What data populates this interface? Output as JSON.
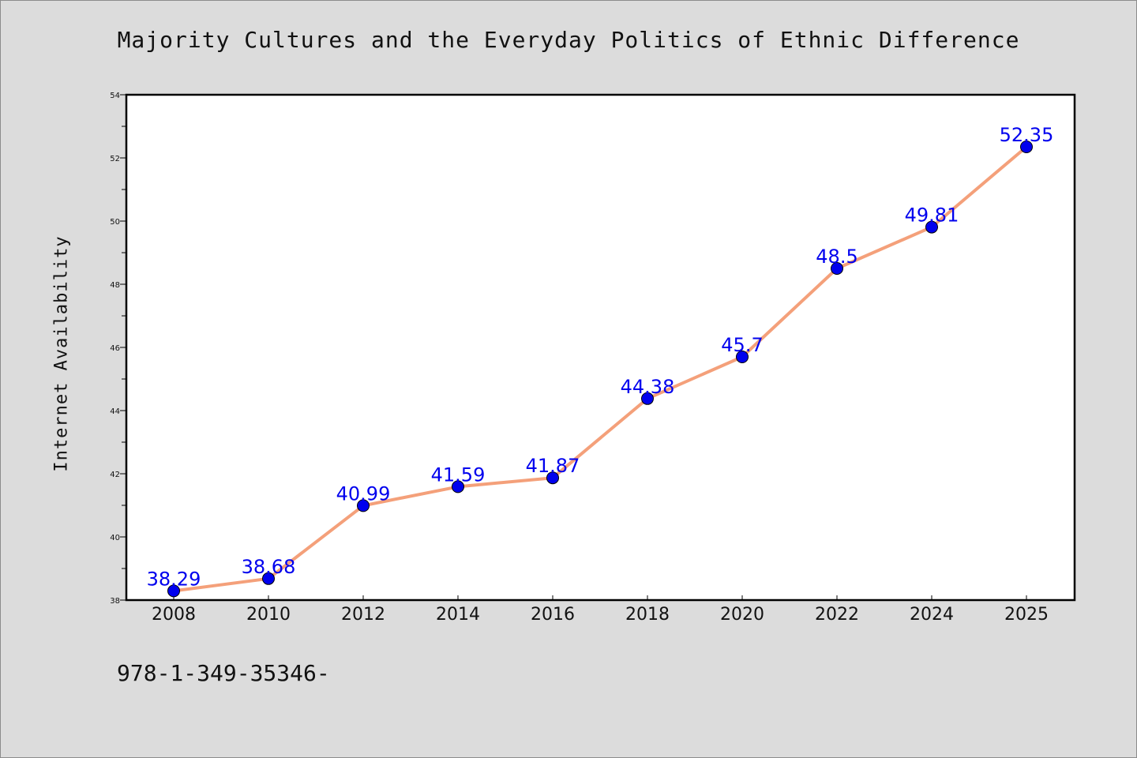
{
  "chart_data": {
    "type": "line",
    "title": "Majority Cultures and the Everyday Politics of Ethnic Difference",
    "xlabel": "",
    "ylabel": "Internet Availability",
    "categories": [
      "2008",
      "2010",
      "2012",
      "2014",
      "2016",
      "2018",
      "2020",
      "2022",
      "2024",
      "2025"
    ],
    "series": [
      {
        "values": [
          38.29,
          38.68,
          40.99,
          41.59,
          41.87,
          44.38,
          45.7,
          48.5,
          49.81,
          52.35
        ],
        "data_labels": [
          "38.29",
          "38.68",
          "40.99",
          "41.59",
          "41.87",
          "44.38",
          "45.7",
          "48.5",
          "49.81",
          "52.35"
        ],
        "line_color": "#f4a07a",
        "marker_color": "#0000ee"
      }
    ],
    "ylim": [
      38,
      54
    ],
    "y_ticks": [
      "38",
      "40",
      "42",
      "44",
      "46",
      "48",
      "50",
      "52",
      "54"
    ],
    "grid": false,
    "legend": "none",
    "footer_text": "978-1-349-35346-"
  }
}
